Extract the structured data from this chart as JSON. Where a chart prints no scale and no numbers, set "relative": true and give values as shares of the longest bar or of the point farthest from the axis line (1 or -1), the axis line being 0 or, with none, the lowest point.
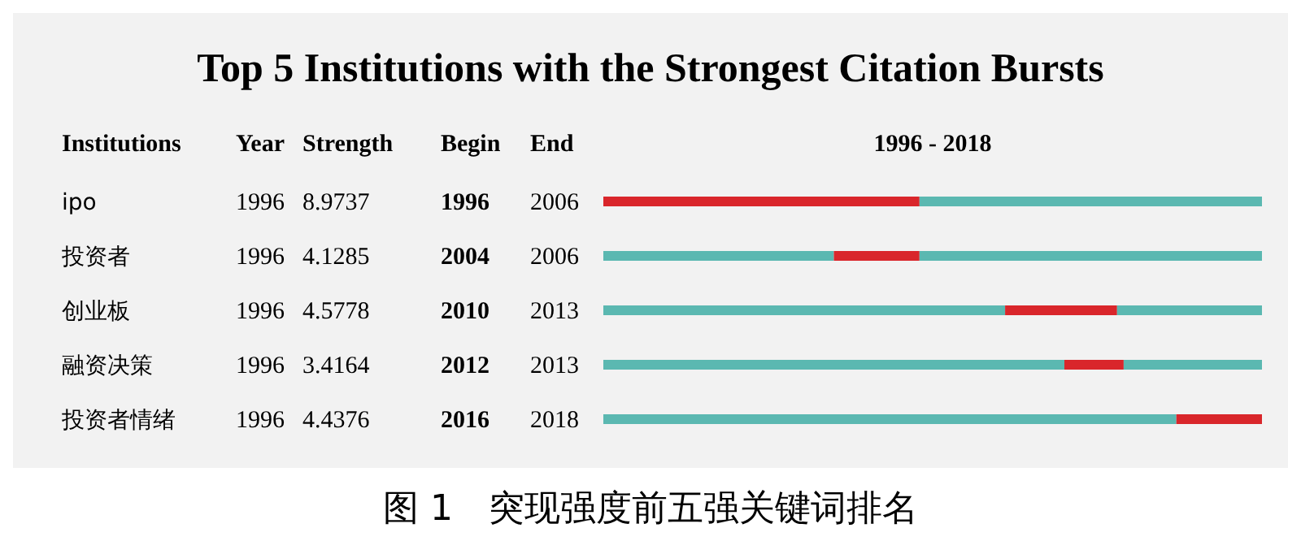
{
  "chart_data": {
    "type": "bar",
    "orientation": "horizontal",
    "stacked": true,
    "relative": true,
    "title": "Top 5 Institutions with the Strongest Citation Bursts",
    "ylabel": "Institutions",
    "xlabel": "1996 - 2018",
    "categories": [
      "ipo",
      "投资者",
      "创业板",
      "融资决策",
      "投资者情绪"
    ],
    "tick_labels": "y",
    "series": [
      {
        "color": "#5bb8b1",
        "values": [
          0,
          0.35,
          0.61,
          0.7,
          0.87
        ]
      },
      {
        "color": "#d9262b",
        "values": [
          0.48,
          0.13,
          0.17,
          0.09,
          0.13
        ]
      },
      {
        "color": "#5bb8b1",
        "values": [
          0.52,
          0.52,
          0.22,
          0.21,
          0
        ]
      }
    ],
    "annotations": [
      "Year",
      "Strength",
      "Begin",
      "End",
      "图 1　突现强度前五强关键词排名",
      "1996",
      "8.9737",
      "1996",
      "2006",
      "1996",
      "4.1285",
      "2004",
      "2006",
      "1996",
      "4.5778",
      "2010",
      "2013",
      "1996",
      "3.4164",
      "2012",
      "2013",
      "1996",
      "4.4376",
      "2016",
      "2018"
    ]
  }
}
